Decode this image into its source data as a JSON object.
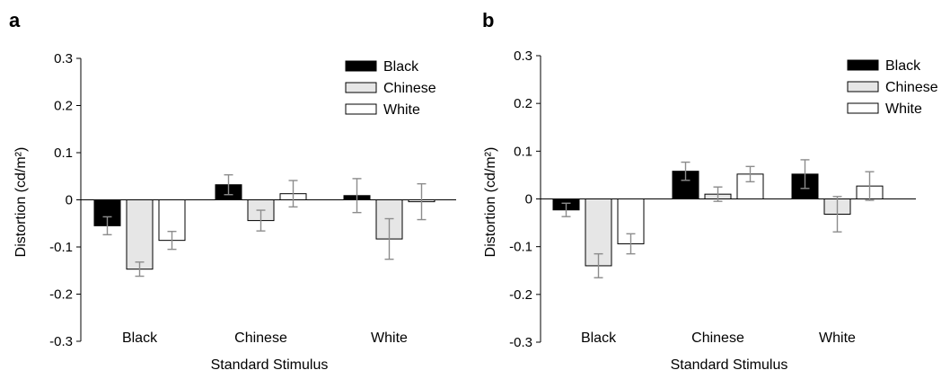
{
  "chart_data": [
    {
      "panel_label": "a",
      "type": "bar",
      "xlabel": "Standard Stimulus",
      "ylabel": "Distortion (cd/m²)",
      "ylim": [
        -0.3,
        0.3
      ],
      "yticks": [
        -0.3,
        -0.2,
        -0.1,
        0,
        0.1,
        0.2,
        0.3
      ],
      "ytick_labels": [
        "-0.3",
        "-0.2",
        "-0.1",
        "0",
        "0.1",
        "0.2",
        "0.3"
      ],
      "categories": [
        "Black",
        "Chinese",
        "White"
      ],
      "legend_position": "top-right",
      "grid": false,
      "series": [
        {
          "name": "Black",
          "color": "#000000",
          "values": [
            -0.055,
            0.032,
            0.009
          ],
          "errors": [
            0.019,
            0.021,
            0.036
          ]
        },
        {
          "name": "Chinese",
          "color": "#e6e6e6",
          "values": [
            -0.147,
            -0.044,
            -0.083
          ],
          "errors": [
            0.015,
            0.022,
            0.043
          ]
        },
        {
          "name": "White",
          "color": "#ffffff",
          "values": [
            -0.086,
            0.013,
            -0.004
          ],
          "errors": [
            0.019,
            0.028,
            0.038
          ]
        }
      ]
    },
    {
      "panel_label": "b",
      "type": "bar",
      "xlabel": "Standard Stimulus",
      "ylabel": "Distortion (cd/m²)",
      "ylim": [
        -0.3,
        0.3
      ],
      "yticks": [
        -0.3,
        -0.2,
        -0.1,
        0,
        0.1,
        0.2,
        0.3
      ],
      "ytick_labels": [
        "-0.3",
        "-0.2",
        "-0.1",
        "0",
        "0.1",
        "0.2",
        "0.3"
      ],
      "categories": [
        "Black",
        "Chinese",
        "White"
      ],
      "legend_position": "top-right",
      "grid": false,
      "series": [
        {
          "name": "Black",
          "color": "#000000",
          "values": [
            -0.023,
            0.058,
            0.052
          ],
          "errors": [
            0.014,
            0.019,
            0.03
          ]
        },
        {
          "name": "Chinese",
          "color": "#e6e6e6",
          "values": [
            -0.14,
            0.01,
            -0.032
          ],
          "errors": [
            0.025,
            0.015,
            0.037
          ]
        },
        {
          "name": "White",
          "color": "#ffffff",
          "values": [
            -0.094,
            0.052,
            0.027
          ],
          "errors": [
            0.021,
            0.016,
            0.03
          ]
        }
      ]
    }
  ]
}
